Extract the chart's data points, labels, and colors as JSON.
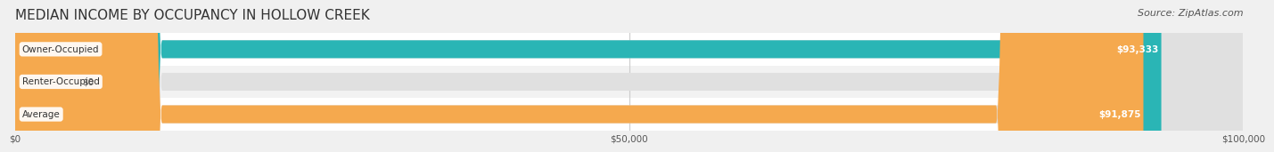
{
  "title": "MEDIAN INCOME BY OCCUPANCY IN HOLLOW CREEK",
  "source": "Source: ZipAtlas.com",
  "categories": [
    "Owner-Occupied",
    "Renter-Occupied",
    "Average"
  ],
  "values": [
    93333,
    0,
    91875
  ],
  "bar_colors": [
    "#2ab5b5",
    "#c9a8d4",
    "#f5a94e"
  ],
  "bar_labels": [
    "$93,333",
    "$0",
    "$91,875"
  ],
  "label_colors": [
    "#ffffff",
    "#555555",
    "#ffffff"
  ],
  "background_color": "#f0f0f0",
  "bar_bg_color": "#e8e8e8",
  "xlim": [
    0,
    100000
  ],
  "xticks": [
    0,
    50000,
    100000
  ],
  "xtick_labels": [
    "$0",
    "$50,000",
    "$100,000"
  ],
  "title_fontsize": 11,
  "source_fontsize": 8,
  "bar_height": 0.55,
  "bar_row_colors": [
    "#ffffff",
    "#f2f2f2",
    "#ffffff"
  ]
}
